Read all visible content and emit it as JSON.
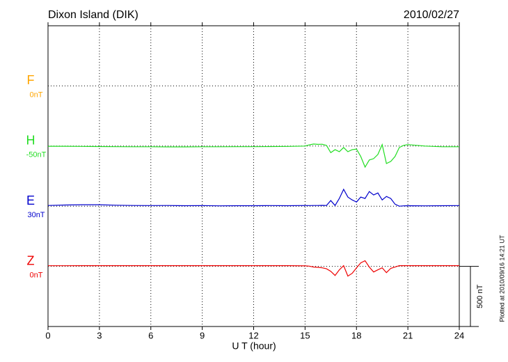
{
  "chart_data": {
    "type": "line",
    "title": "Dixon Island (DIK)",
    "date": "2010/02/27",
    "x_label": "U T (hour)",
    "plotted_note": "Plotted at 2010/09/16 14:21 UT",
    "xlim": [
      0,
      24
    ],
    "xticks": [
      0,
      3,
      6,
      9,
      12,
      15,
      18,
      21,
      24
    ],
    "grid": true,
    "scale_bar": {
      "value": 500,
      "label": "500 nT"
    },
    "x": [
      0,
      1,
      2,
      3,
      4,
      5,
      6,
      7,
      8,
      9,
      10,
      11,
      12,
      13,
      14,
      15,
      15.25,
      15.5,
      15.75,
      16,
      16.25,
      16.5,
      16.75,
      17,
      17.25,
      17.5,
      17.75,
      18,
      18.25,
      18.5,
      18.75,
      19,
      19.25,
      19.5,
      19.75,
      20,
      20.25,
      20.5,
      20.75,
      21,
      22,
      23,
      24
    ],
    "series": [
      {
        "name": "F",
        "color": "#ffa500",
        "baseline": {
          "value": 0,
          "label": "0nT"
        },
        "values": [
          null,
          null,
          null,
          null,
          null,
          null,
          null,
          null,
          null,
          null,
          null,
          null,
          null,
          null,
          null,
          null,
          null,
          null,
          null,
          null,
          null,
          null,
          null,
          null,
          null,
          null,
          null,
          null,
          null,
          null,
          null,
          null,
          null,
          null,
          null,
          null,
          null,
          null,
          null,
          null,
          null,
          null,
          null
        ]
      },
      {
        "name": "H",
        "color": "#22dd22",
        "baseline": {
          "value": -50,
          "label": "-50nT"
        },
        "values": [
          -52,
          -52,
          -53,
          -54,
          -55,
          -56,
          -56,
          -57,
          -57,
          -56,
          -56,
          -55,
          -55,
          -54,
          -53,
          -50,
          -40,
          -33,
          -36,
          -35,
          -45,
          -105,
          -80,
          -97,
          -62,
          -97,
          -80,
          -75,
          -137,
          -225,
          -166,
          -155,
          -120,
          -38,
          -195,
          -178,
          -137,
          -62,
          -44,
          -38,
          -50,
          -56,
          -56
        ]
      },
      {
        "name": "E",
        "color": "#0000cc",
        "baseline": {
          "value": 30,
          "label": "30nT"
        },
        "values": [
          36,
          40,
          42,
          42,
          38,
          36,
          35,
          36,
          34,
          35,
          33,
          34,
          34,
          35,
          34,
          36,
          35,
          36,
          36,
          37,
          36,
          77,
          36,
          94,
          170,
          106,
          82,
          65,
          106,
          94,
          152,
          123,
          140,
          82,
          111,
          94,
          47,
          30,
          33,
          34,
          33,
          34,
          35
        ]
      },
      {
        "name": "Z",
        "color": "#ee0000",
        "baseline": {
          "value": 0,
          "label": "0nT"
        },
        "values": [
          5,
          5,
          6,
          6,
          6,
          6,
          6,
          6,
          6,
          6,
          6,
          6,
          6,
          6,
          6,
          4,
          2,
          -6,
          -8,
          -12,
          -20,
          -41,
          -76,
          -29,
          6,
          -81,
          -58,
          -12,
          29,
          47,
          -6,
          -47,
          -29,
          -12,
          -52,
          -17,
          -6,
          6,
          6,
          6,
          6,
          6,
          6
        ]
      }
    ]
  }
}
